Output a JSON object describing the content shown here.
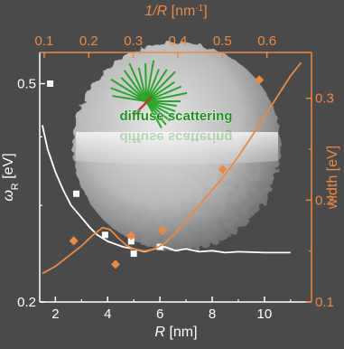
{
  "chart_data": {
    "type": "scatter",
    "colors": {
      "background": "#4a4a4a",
      "white": "#ffffff",
      "orange": "#f0883e",
      "label_green": "#1a8f1a"
    },
    "x_bottom": {
      "label": "R",
      "unit": "[nm]",
      "ticks": [
        2,
        4,
        6,
        8,
        10
      ],
      "range": [
        1.4,
        11.8
      ]
    },
    "x_top": {
      "label": "1/R",
      "unit": "[nm",
      "unit_sup": "-1",
      "unit_end": "]",
      "ticks": [
        "0.1",
        "0.2",
        "0.3",
        "0.4",
        "0.5",
        "0.6"
      ],
      "tick_values": [
        0.1,
        0.2,
        0.3,
        0.4,
        0.5,
        0.6
      ],
      "range": [
        0.09,
        0.7
      ]
    },
    "y_left": {
      "label": "ω",
      "label_sub": "R",
      "unit": " [eV]",
      "ticks": [
        "0.2",
        "0.5"
      ],
      "tick_values": [
        0.2,
        0.5
      ],
      "scale": "log",
      "range": [
        0.2,
        0.57
      ]
    },
    "y_right": {
      "label": "width [eV]",
      "ticks": [
        "0.1",
        "0.2",
        "0.3"
      ],
      "tick_values": [
        0.1,
        0.2,
        0.3
      ],
      "range": [
        0.1,
        0.345
      ]
    },
    "series": [
      {
        "axis": "left",
        "kind": "marker-square",
        "color": "#ffffff",
        "x": [
          1.8,
          2.8,
          3.9,
          4.9,
          5.0,
          6.0
        ],
        "y": [
          0.5,
          0.315,
          0.265,
          0.258,
          0.245,
          0.252
        ]
      },
      {
        "axis": "left",
        "kind": "line",
        "color": "#ffffff",
        "x": [
          1.5,
          1.7,
          2.0,
          2.3,
          2.6,
          3.0,
          3.3,
          3.6,
          4.0,
          4.3,
          4.6,
          5.0,
          5.4,
          5.8,
          6.2,
          6.6,
          7.0,
          7.5,
          8.0,
          8.5,
          9.0,
          10.0,
          11.0
        ],
        "y": [
          0.42,
          0.38,
          0.345,
          0.32,
          0.3,
          0.285,
          0.274,
          0.265,
          0.258,
          0.255,
          0.252,
          0.25,
          0.247,
          0.25,
          0.252,
          0.248,
          0.25,
          0.247,
          0.248,
          0.246,
          0.247,
          0.246,
          0.246
        ]
      },
      {
        "axis": "right",
        "kind": "marker-diamond",
        "color": "#f0883e",
        "x": [
          2.7,
          4.3,
          4.9,
          6.1,
          8.4,
          9.8
        ],
        "y": [
          0.16,
          0.137,
          0.165,
          0.17,
          0.23,
          0.318
        ]
      },
      {
        "axis": "right",
        "kind": "line",
        "color": "#f0883e",
        "x": [
          1.5,
          2.0,
          2.5,
          3.0,
          3.4,
          3.8,
          4.1,
          4.4,
          4.7,
          5.0,
          5.4,
          5.8,
          6.2,
          6.6,
          7.0,
          7.5,
          8.0,
          8.5,
          9.0,
          9.5,
          10.0,
          10.5,
          11.0,
          11.4
        ],
        "y": [
          0.128,
          0.135,
          0.145,
          0.155,
          0.165,
          0.173,
          0.171,
          0.163,
          0.156,
          0.152,
          0.15,
          0.152,
          0.158,
          0.168,
          0.18,
          0.195,
          0.21,
          0.225,
          0.243,
          0.262,
          0.282,
          0.302,
          0.322,
          0.335
        ]
      }
    ],
    "inset_label": "diffuse scattering"
  }
}
